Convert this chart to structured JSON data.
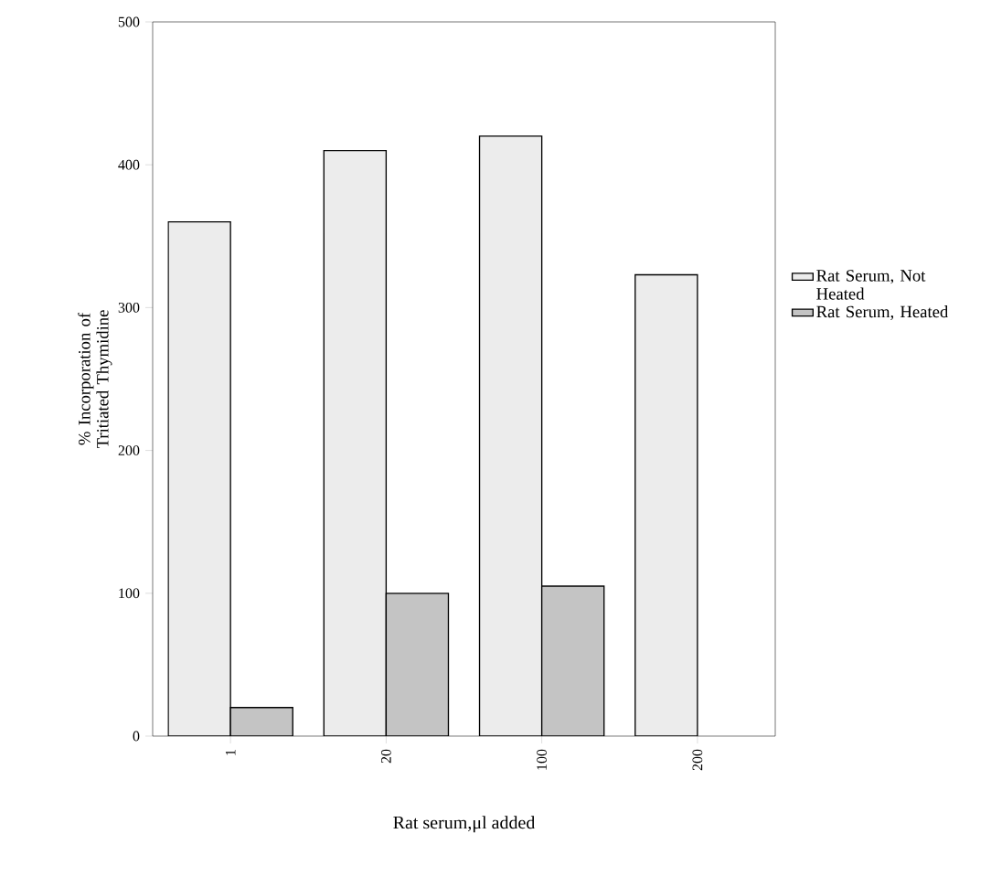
{
  "chart_data": {
    "type": "bar",
    "xlabel": "Rat serum,μl added",
    "ylabel": "% Incorporation of Tritiated Thymidine",
    "categories": [
      "1",
      "20",
      "100",
      "200"
    ],
    "series": [
      {
        "name": "Rat Serum, Not Heated",
        "color": "#ececec",
        "values": [
          360,
          410,
          420,
          323
        ]
      },
      {
        "name": "Rat Serum, Heated",
        "color": "#c4c4c4",
        "values": [
          20,
          100,
          105,
          null
        ]
      }
    ],
    "ylim": [
      0,
      500
    ],
    "yticks": [
      0,
      100,
      200,
      300,
      400,
      500
    ],
    "grid": false,
    "legend": "right"
  }
}
